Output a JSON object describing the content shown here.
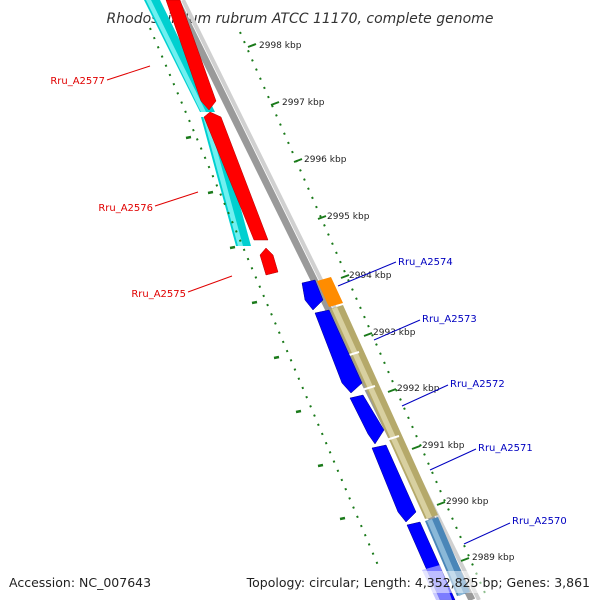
{
  "title": "Rhodospirillum rubrum ATCC 11170, complete genome",
  "accession": "Accession: NC_007643",
  "summary": "Topology: circular; Length: 4,352,825 bp; Genes: 3,861",
  "ticks": [
    {
      "label": "2998 kbp",
      "color": "#1a7a1a"
    },
    {
      "label": "2997 kbp",
      "color": "#1a7a1a"
    },
    {
      "label": "2996 kbp",
      "color": "#1a7a1a"
    },
    {
      "label": "2995 kbp",
      "color": "#1a7a1a"
    },
    {
      "label": "2994 kbp",
      "color": "#1a7a1a"
    },
    {
      "label": "2993 kbp",
      "color": "#1a7a1a"
    },
    {
      "label": "2992 kbp",
      "color": "#1a7a1a"
    },
    {
      "label": "2991 kbp",
      "color": "#1a7a1a"
    },
    {
      "label": "2990 kbp",
      "color": "#1a7a1a"
    },
    {
      "label": "2989 kbp",
      "color": "#1a7a1a"
    }
  ],
  "genes_reverse": [
    {
      "label": "Rru_A2577",
      "color": "#e00000"
    },
    {
      "label": "Rru_A2576",
      "color": "#e00000"
    },
    {
      "label": "Rru_A2575",
      "color": "#e00000"
    }
  ],
  "genes_forward": [
    {
      "label": "Rru_A2574",
      "color": "#0000c0"
    },
    {
      "label": "Rru_A2573",
      "color": "#0000c0"
    },
    {
      "label": "Rru_A2572",
      "color": "#0000c0"
    },
    {
      "label": "Rru_A2571",
      "color": "#0000c0"
    },
    {
      "label": "Rru_A2570",
      "color": "#0000c0"
    }
  ],
  "colors": {
    "reverse_cds": "#ff0000",
    "forward_cds": "#0000ff",
    "cog_reverse": "#00cccc",
    "cog_forward": "#b5a96a",
    "cog_orange": "#ff8c00",
    "cog_steel": "#4a86b8",
    "backbone": "#8a8a8a",
    "tick": "#1a7a1a"
  }
}
